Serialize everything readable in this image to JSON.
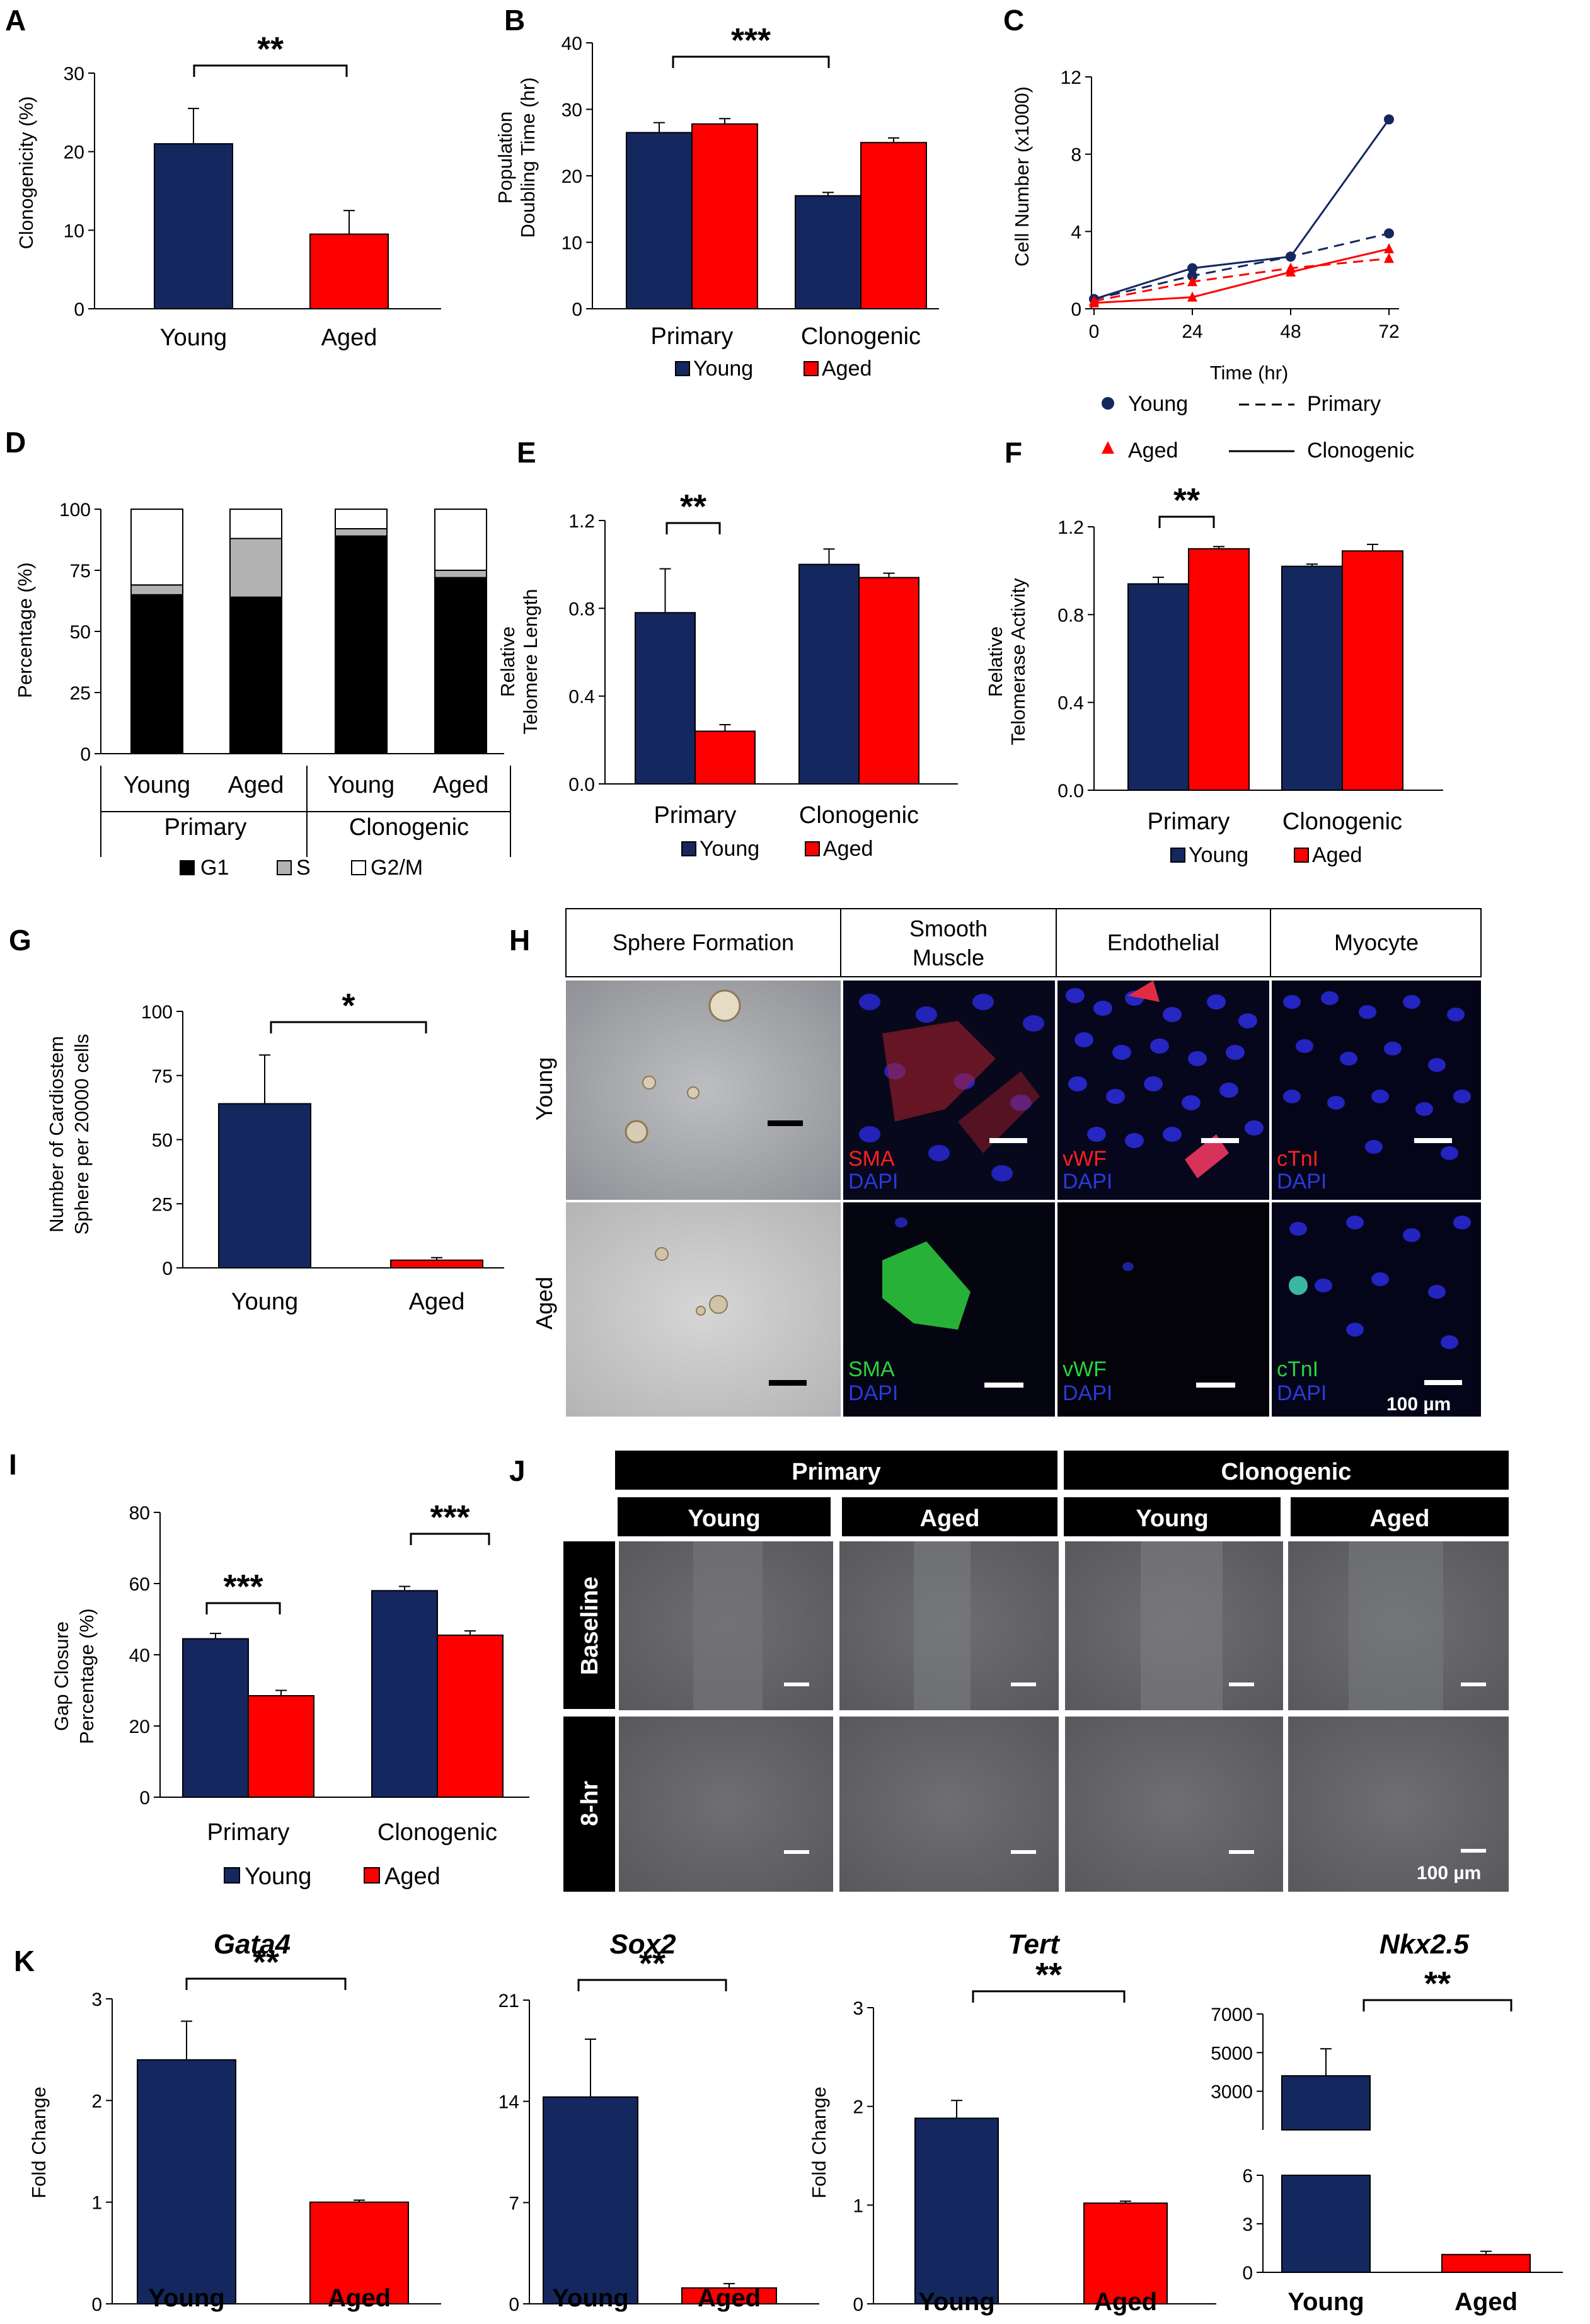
{
  "colors": {
    "young": "#14275f",
    "aged": "#ff0000",
    "stroke": "#000000"
  },
  "panels": {
    "A": {
      "label": "A",
      "ylabel": "Clonogenicity (%)",
      "sig": "**"
    },
    "B": {
      "label": "B",
      "ylabel": [
        "Population",
        "Doubling Time (hr)"
      ],
      "sig": "***"
    },
    "C": {
      "label": "C",
      "ylabel": "Cell Number (x1000)",
      "xlabel": "Time (hr)"
    },
    "D": {
      "label": "D",
      "ylabel": "Percentage (%)",
      "groups": [
        "Primary",
        "Clonogenic"
      ]
    },
    "E": {
      "label": "E",
      "ylabel": [
        "Relative",
        "Telomere Length"
      ],
      "sig": "**"
    },
    "F": {
      "label": "F",
      "ylabel": [
        "Relative",
        "Telomerase Activity"
      ],
      "sig": "**"
    },
    "G": {
      "label": "G",
      "ylabel": [
        "Number of Cardiostem",
        "Sphere per 20000 cells"
      ],
      "sig": "*"
    },
    "H": {
      "label": "H",
      "columns": [
        "Sphere Formation",
        "Smooth Muscle",
        "Endothelial",
        "Myocyte"
      ],
      "rows": [
        "Young",
        "Aged"
      ],
      "young_markers": [
        "SMA",
        "vWF",
        "cTnI"
      ],
      "aged_markers": [
        "SMA",
        "vWF",
        "cTnI"
      ],
      "counterstain": "DAPI",
      "scale": "100 µm"
    },
    "I": {
      "label": "I",
      "ylabel": [
        "Gap Closure",
        "Percentage (%)"
      ],
      "sig": "***"
    },
    "J": {
      "label": "J",
      "groups": [
        "Primary",
        "Clonogenic"
      ],
      "subgroups": [
        "Young",
        "Aged",
        "Young",
        "Aged"
      ],
      "rows": [
        "Baseline",
        "8-hr"
      ],
      "scale": "100 µm"
    },
    "K": {
      "label": "K",
      "genes": [
        "Gata4",
        "Sox2",
        "Tert",
        "Nkx2.5"
      ],
      "ylabel": "Fold Change",
      "sig": "**"
    }
  },
  "legend": {
    "young": "Young",
    "aged": "Aged",
    "primary": "Primary",
    "clonogenic": "Clonogenic",
    "g1": "G1",
    "s": "S",
    "g2m": "G2/M"
  },
  "chart_data": [
    {
      "panel": "A",
      "type": "bar",
      "categories": [
        "Young",
        "Aged"
      ],
      "values": [
        21,
        9.5
      ],
      "errors": [
        4.5,
        3
      ],
      "ylim": [
        0,
        30
      ],
      "yticks": [
        0,
        10,
        20,
        30
      ],
      "ylabel": "Clonogenicity (%)"
    },
    {
      "panel": "B",
      "type": "bar",
      "categories": [
        "Primary",
        "Clonogenic"
      ],
      "series": [
        {
          "name": "Young",
          "values": [
            26.5,
            17
          ],
          "errors": [
            1.5,
            0.5
          ]
        },
        {
          "name": "Aged",
          "values": [
            27.8,
            25
          ],
          "errors": [
            0.8,
            0.7
          ]
        }
      ],
      "ylim": [
        0,
        40
      ],
      "yticks": [
        0,
        10,
        20,
        30,
        40
      ],
      "ylabel": "Population Doubling Time (hr)"
    },
    {
      "panel": "C",
      "type": "line",
      "x": [
        0,
        24,
        48,
        72
      ],
      "series": [
        {
          "name": "Young Primary",
          "values": [
            0.5,
            1.7,
            2.7,
            3.9
          ]
        },
        {
          "name": "Young Clonogenic",
          "values": [
            0.5,
            2.1,
            2.7,
            9.8
          ]
        },
        {
          "name": "Aged Primary",
          "values": [
            0.4,
            1.4,
            2.1,
            2.6
          ]
        },
        {
          "name": "Aged Clonogenic",
          "values": [
            0.3,
            0.6,
            1.9,
            3.1
          ]
        }
      ],
      "xlim": [
        0,
        72
      ],
      "xticks": [
        0,
        24,
        48,
        72
      ],
      "ylim": [
        0,
        12
      ],
      "yticks": [
        0,
        4,
        8,
        12
      ],
      "xlabel": "Time (hr)",
      "ylabel": "Cell Number (x1000)"
    },
    {
      "panel": "D",
      "type": "bar",
      "stacked": true,
      "categories": [
        "Young",
        "Aged",
        "Young",
        "Aged"
      ],
      "series": [
        {
          "name": "G1",
          "values": [
            65,
            64,
            89,
            72
          ]
        },
        {
          "name": "S",
          "values": [
            4,
            24,
            3,
            3
          ]
        },
        {
          "name": "G2/M",
          "values": [
            31,
            12,
            8,
            25
          ]
        }
      ],
      "ylim": [
        0,
        100
      ],
      "yticks": [
        0,
        25,
        50,
        75,
        100
      ],
      "ylabel": "Percentage (%)"
    },
    {
      "panel": "E",
      "type": "bar",
      "categories": [
        "Primary",
        "Clonogenic"
      ],
      "series": [
        {
          "name": "Young",
          "values": [
            0.78,
            1.0
          ],
          "errors": [
            0.2,
            0.07
          ]
        },
        {
          "name": "Aged",
          "values": [
            0.24,
            0.94
          ],
          "errors": [
            0.03,
            0.02
          ]
        }
      ],
      "ylim": [
        0,
        1.2
      ],
      "yticks": [
        0,
        0.4,
        0.8,
        1.2
      ],
      "ylabel": "Relative Telomere Length"
    },
    {
      "panel": "F",
      "type": "bar",
      "categories": [
        "Primary",
        "Clonogenic"
      ],
      "series": [
        {
          "name": "Young",
          "values": [
            0.94,
            1.02
          ],
          "errors": [
            0.03,
            0.01
          ]
        },
        {
          "name": "Aged",
          "values": [
            1.1,
            1.09
          ],
          "errors": [
            0.01,
            0.03
          ]
        }
      ],
      "ylim": [
        0,
        1.2
      ],
      "yticks": [
        0,
        0.4,
        0.8,
        1.2
      ],
      "ylabel": "Relative Telomerase Activity"
    },
    {
      "panel": "G",
      "type": "bar",
      "categories": [
        "Young",
        "Aged"
      ],
      "values": [
        64,
        3
      ],
      "errors": [
        19,
        1
      ],
      "ylim": [
        0,
        100
      ],
      "yticks": [
        0,
        25,
        50,
        75,
        100
      ],
      "ylabel": "Number of Cardiostem Sphere per 20000 cells"
    },
    {
      "panel": "I",
      "type": "bar",
      "categories": [
        "Primary",
        "Clonogenic"
      ],
      "series": [
        {
          "name": "Young",
          "values": [
            44.5,
            58
          ],
          "errors": [
            1.5,
            1.2
          ]
        },
        {
          "name": "Aged",
          "values": [
            28.5,
            45.5
          ],
          "errors": [
            1.5,
            1.2
          ]
        }
      ],
      "ylim": [
        0,
        80
      ],
      "yticks": [
        0,
        20,
        40,
        60,
        80
      ],
      "ylabel": "Gap Closure Percentage (%)"
    },
    {
      "panel": "K1",
      "type": "bar",
      "title": "Gata4",
      "categories": [
        "Young",
        "Aged"
      ],
      "values": [
        2.4,
        1.0
      ],
      "errors": [
        0.38,
        0.02
      ],
      "ylim": [
        0,
        3
      ],
      "yticks": [
        0,
        1,
        2,
        3
      ],
      "ylabel": "Fold Change"
    },
    {
      "panel": "K2",
      "type": "bar",
      "title": "Sox2",
      "categories": [
        "Young",
        "Aged"
      ],
      "values": [
        14.3,
        1.1
      ],
      "errors": [
        4,
        0.3
      ],
      "ylim": [
        0,
        21
      ],
      "yticks": [
        0,
        7,
        14,
        21
      ]
    },
    {
      "panel": "K3",
      "type": "bar",
      "title": "Tert",
      "categories": [
        "Young",
        "Aged"
      ],
      "values": [
        1.88,
        1.02
      ],
      "errors": [
        0.18,
        0.02
      ],
      "ylim": [
        0,
        3
      ],
      "yticks": [
        0,
        1,
        2,
        3
      ],
      "ylabel": "Fold Change"
    },
    {
      "panel": "K4",
      "type": "bar",
      "title": "Nkx2.5",
      "axis_break": true,
      "categories": [
        "Young",
        "Aged"
      ],
      "values": [
        3800,
        1.1
      ],
      "errors": [
        1400,
        0.2
      ],
      "ylim_lower": [
        0,
        6
      ],
      "yticks_lower": [
        0,
        3,
        6
      ],
      "ylim_upper": [
        1000,
        7000
      ],
      "yticks_upper": [
        3000,
        5000,
        7000
      ]
    }
  ]
}
